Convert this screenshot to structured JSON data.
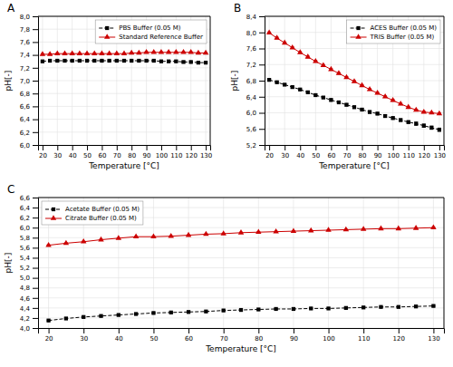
{
  "chart_data": [
    {
      "type": "line",
      "title": "A",
      "xlabel": "Temperature [°C]",
      "ylabel": "pH[-]",
      "x": [
        20,
        25,
        30,
        35,
        40,
        45,
        50,
        55,
        60,
        65,
        70,
        75,
        80,
        85,
        90,
        95,
        100,
        105,
        110,
        115,
        120,
        125,
        130
      ],
      "series": [
        {
          "name": "PBS Buffer (0.05 M)",
          "color": "#000000",
          "marker": "square",
          "line_style": "dashed",
          "values": [
            7.3,
            7.31,
            7.31,
            7.31,
            7.31,
            7.31,
            7.31,
            7.31,
            7.31,
            7.31,
            7.31,
            7.31,
            7.31,
            7.31,
            7.31,
            7.31,
            7.3,
            7.3,
            7.3,
            7.29,
            7.29,
            7.28,
            7.28
          ],
          "errors": [
            0.01,
            0.01,
            0.01,
            0.01,
            0.01,
            0.01,
            0.01,
            0.01,
            0.01,
            0.01,
            0.01,
            0.01,
            0.01,
            0.01,
            0.01,
            0.01,
            0.01,
            0.01,
            0.01,
            0.01,
            0.01,
            0.01,
            0.01
          ]
        },
        {
          "name": "Standard Reference Buffer",
          "color": "#cc0000",
          "marker": "triangle",
          "line_style": "solid",
          "values": [
            7.41,
            7.41,
            7.42,
            7.42,
            7.42,
            7.42,
            7.42,
            7.42,
            7.42,
            7.42,
            7.42,
            7.42,
            7.43,
            7.43,
            7.44,
            7.44,
            7.44,
            7.44,
            7.44,
            7.44,
            7.44,
            7.43,
            7.43
          ],
          "errors": [
            0.01,
            0.01,
            0.01,
            0.01,
            0.01,
            0.01,
            0.01,
            0.01,
            0.01,
            0.01,
            0.01,
            0.01,
            0.01,
            0.01,
            0.01,
            0.01,
            0.01,
            0.01,
            0.01,
            0.01,
            0.01,
            0.01,
            0.01
          ]
        }
      ],
      "xlim": [
        17,
        133
      ],
      "xticks": [
        20,
        30,
        40,
        50,
        60,
        70,
        80,
        90,
        100,
        110,
        120,
        130
      ],
      "ylim": [
        6.0,
        8.0
      ],
      "yticks": [
        {
          "value": 6.0,
          "label": "6,0"
        },
        {
          "value": 6.2,
          "label": "6,2"
        },
        {
          "value": 6.4,
          "label": "6,4"
        },
        {
          "value": 6.6,
          "label": "6,6"
        },
        {
          "value": 6.8,
          "label": "6,8"
        },
        {
          "value": 7.0,
          "label": "7,0"
        },
        {
          "value": 7.2,
          "label": "7,2"
        },
        {
          "value": 7.4,
          "label": "7,4"
        },
        {
          "value": 7.6,
          "label": "7,6"
        },
        {
          "value": 7.8,
          "label": "7,8"
        },
        {
          "value": 8.0,
          "label": "8,0"
        }
      ],
      "grid": true,
      "legend": "upper right"
    },
    {
      "type": "line",
      "title": "B",
      "xlabel": "Temperature [°C]",
      "ylabel": "pH[-]",
      "x": [
        20,
        25,
        30,
        35,
        40,
        45,
        50,
        55,
        60,
        65,
        70,
        75,
        80,
        85,
        90,
        95,
        100,
        105,
        110,
        115,
        120,
        125,
        130
      ],
      "series": [
        {
          "name": "ACES Buffer (0.05 M)",
          "color": "#000000",
          "marker": "square",
          "line_style": "dashed",
          "values": [
            6.82,
            6.76,
            6.7,
            6.64,
            6.58,
            6.51,
            6.44,
            6.38,
            6.32,
            6.26,
            6.2,
            6.14,
            6.08,
            6.02,
            5.98,
            5.92,
            5.87,
            5.82,
            5.77,
            5.73,
            5.68,
            5.63,
            5.58
          ],
          "errors": [
            0.02,
            0.02,
            0.02,
            0.02,
            0.02,
            0.02,
            0.02,
            0.02,
            0.03,
            0.03,
            0.03,
            0.03,
            0.03,
            0.03,
            0.03,
            0.03,
            0.03,
            0.03,
            0.03,
            0.04,
            0.04,
            0.04,
            0.04
          ]
        },
        {
          "name": "TRIS Buffer (0.05 M)",
          "color": "#cc0000",
          "marker": "triangle",
          "line_style": "solid",
          "values": [
            7.99,
            7.86,
            7.74,
            7.62,
            7.5,
            7.39,
            7.28,
            7.18,
            7.08,
            6.98,
            6.88,
            6.78,
            6.68,
            6.58,
            6.49,
            6.4,
            6.31,
            6.22,
            6.14,
            6.07,
            6.02,
            6.0,
            5.98
          ],
          "errors": [
            0.02,
            0.02,
            0.02,
            0.02,
            0.02,
            0.02,
            0.02,
            0.02,
            0.02,
            0.02,
            0.02,
            0.02,
            0.02,
            0.02,
            0.02,
            0.02,
            0.02,
            0.02,
            0.02,
            0.02,
            0.02,
            0.02,
            0.02
          ]
        }
      ],
      "xlim": [
        17,
        133
      ],
      "xticks": [
        20,
        30,
        40,
        50,
        60,
        70,
        80,
        90,
        100,
        110,
        120,
        130
      ],
      "ylim": [
        5.2,
        8.4
      ],
      "yticks": [
        {
          "value": 5.2,
          "label": "5,2"
        },
        {
          "value": 5.6,
          "label": "5,6"
        },
        {
          "value": 6.0,
          "label": "6,0"
        },
        {
          "value": 6.4,
          "label": "6,4"
        },
        {
          "value": 6.8,
          "label": "6,8"
        },
        {
          "value": 7.2,
          "label": "7,2"
        },
        {
          "value": 7.6,
          "label": "7,6"
        },
        {
          "value": 8.0,
          "label": "8,0"
        },
        {
          "value": 8.4,
          "label": "8,4"
        }
      ],
      "grid": true,
      "legend": "upper right"
    },
    {
      "type": "line",
      "title": "C",
      "xlabel": "Temperature [°C]",
      "ylabel": "pH[-]",
      "x": [
        20,
        25,
        30,
        35,
        40,
        45,
        50,
        55,
        60,
        65,
        70,
        75,
        80,
        85,
        90,
        95,
        100,
        105,
        110,
        115,
        120,
        125,
        130
      ],
      "series": [
        {
          "name": "Acetate Buffer (0.05 M)",
          "color": "#000000",
          "marker": "square",
          "line_style": "dashed",
          "values": [
            4.15,
            4.19,
            4.22,
            4.24,
            4.26,
            4.28,
            4.3,
            4.31,
            4.32,
            4.33,
            4.35,
            4.36,
            4.37,
            4.38,
            4.38,
            4.39,
            4.39,
            4.4,
            4.41,
            4.42,
            4.42,
            4.43,
            4.44
          ],
          "errors": [
            0.01,
            0.01,
            0.01,
            0.01,
            0.01,
            0.01,
            0.01,
            0.01,
            0.01,
            0.01,
            0.01,
            0.01,
            0.01,
            0.01,
            0.01,
            0.01,
            0.01,
            0.01,
            0.01,
            0.01,
            0.01,
            0.01,
            0.01
          ]
        },
        {
          "name": "Citrate Buffer (0.05 M)",
          "color": "#cc0000",
          "marker": "triangle",
          "line_style": "solid",
          "values": [
            5.65,
            5.69,
            5.72,
            5.76,
            5.79,
            5.82,
            5.82,
            5.83,
            5.85,
            5.87,
            5.88,
            5.9,
            5.91,
            5.92,
            5.93,
            5.94,
            5.95,
            5.96,
            5.97,
            5.98,
            5.98,
            5.99,
            6.0
          ],
          "errors": [
            0.01,
            0.01,
            0.01,
            0.01,
            0.01,
            0.01,
            0.01,
            0.01,
            0.01,
            0.01,
            0.01,
            0.01,
            0.01,
            0.01,
            0.01,
            0.01,
            0.01,
            0.01,
            0.01,
            0.01,
            0.01,
            0.01,
            0.01
          ]
        }
      ],
      "xlim": [
        17,
        133
      ],
      "xticks": [
        20,
        30,
        40,
        50,
        60,
        70,
        80,
        90,
        100,
        110,
        120,
        130
      ],
      "ylim": [
        4.0,
        6.6
      ],
      "yticks": [
        {
          "value": 4.0,
          "label": "4,0"
        },
        {
          "value": 4.2,
          "label": "4,2"
        },
        {
          "value": 4.4,
          "label": "4,4"
        },
        {
          "value": 4.6,
          "label": "4,6"
        },
        {
          "value": 4.8,
          "label": "4,8"
        },
        {
          "value": 5.0,
          "label": "5,0"
        },
        {
          "value": 5.2,
          "label": "5,2"
        },
        {
          "value": 5.4,
          "label": "5,4"
        },
        {
          "value": 5.6,
          "label": "5,6"
        },
        {
          "value": 5.8,
          "label": "5,8"
        },
        {
          "value": 6.0,
          "label": "6,0"
        },
        {
          "value": 6.2,
          "label": "6,2"
        },
        {
          "value": 6.4,
          "label": "6,4"
        },
        {
          "value": 6.6,
          "label": "6,6"
        }
      ],
      "grid": true,
      "legend": "upper left"
    }
  ]
}
